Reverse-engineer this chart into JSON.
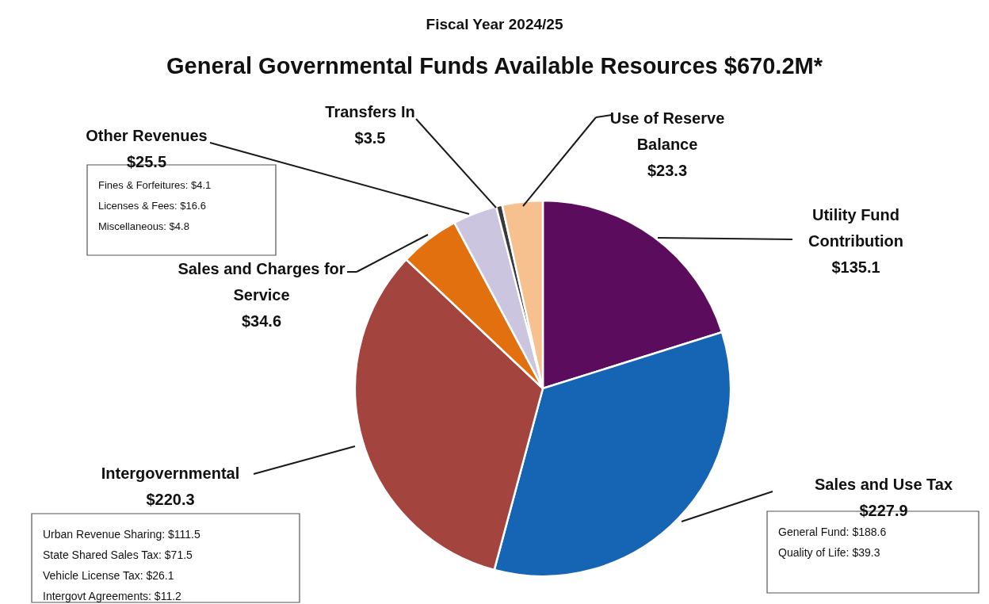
{
  "chart_data": {
    "type": "pie",
    "title": "General Governmental Funds Available Resources $670.2M*",
    "subtitle": "Fiscal Year 2024/25",
    "categories": [
      "Utility Fund Contribution",
      "Sales and Use Tax",
      "Intergovernmental",
      "Sales and Charges for Service",
      "Other Revenues",
      "Transfers In",
      "Use of Reserve Balance"
    ],
    "values": [
      135.1,
      227.9,
      220.3,
      34.6,
      25.5,
      3.5,
      23.3
    ],
    "colors": [
      "#5c0c5c",
      "#1665b5",
      "#a3443f",
      "#e3700f",
      "#cbc5df",
      "#3a3a3a",
      "#f7c08f"
    ],
    "value_labels": [
      "$135.1",
      "$227.9",
      "$220.3",
      "$34.6",
      "$25.5",
      "$3.5",
      "$23.3"
    ],
    "annotations": [
      "Fines & Forfeitures: $4.1",
      "Licenses & Fees: $16.6",
      "Miscellaneous: $4.8",
      "Urban Revenue Sharing: $111.5",
      "State Shared Sales Tax: $71.5",
      "Vehicle License Tax: $26.1",
      "Intergovt Agreements: $11.2",
      "General Fund: $188.6",
      "Quality of Life: $39.3"
    ]
  }
}
